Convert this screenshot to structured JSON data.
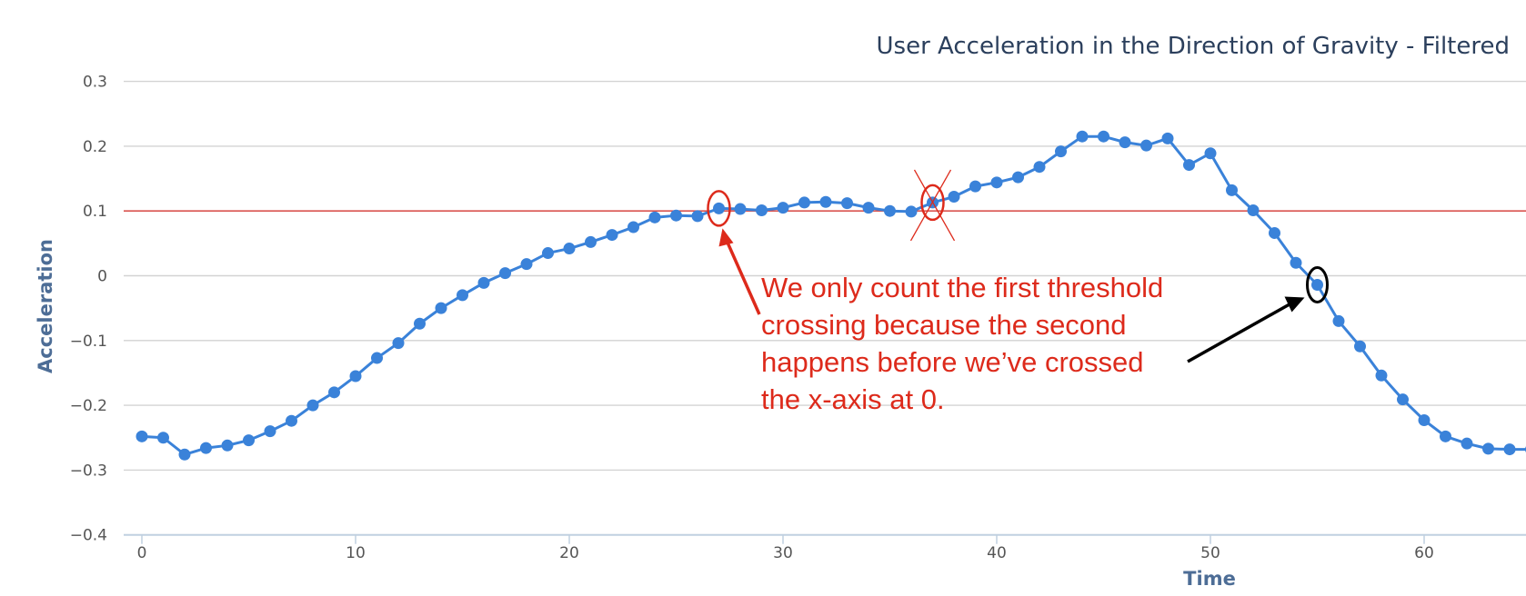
{
  "chart_data": {
    "type": "line",
    "title": "User Acceleration in the Direction of Gravity - Filtered",
    "xlabel": "Time",
    "ylabel": "Acceleration",
    "xlim": [
      -0.5,
      65
    ],
    "ylim": [
      -0.4,
      0.3
    ],
    "x_ticks": [
      0,
      10,
      20,
      30,
      40,
      50,
      60
    ],
    "y_ticks": [
      0.3,
      0.2,
      0.1,
      0,
      -0.1,
      -0.2,
      -0.3,
      -0.4
    ],
    "x_tick_labels": [
      "0",
      "10",
      "20",
      "30",
      "40",
      "50",
      "60"
    ],
    "y_tick_labels": [
      "0.3",
      "0.2",
      "0.1",
      "0",
      "−0.1",
      "−0.2",
      "−0.3",
      "−0.4"
    ],
    "grid": true,
    "series": [
      {
        "color": "#3a82d9",
        "x": [
          0,
          1,
          2,
          3,
          4,
          5,
          6,
          7,
          8,
          9,
          10,
          11,
          12,
          13,
          14,
          15,
          16,
          17,
          18,
          19,
          20,
          21,
          22,
          23,
          24,
          25,
          26,
          27,
          28,
          29,
          30,
          31,
          32,
          33,
          34,
          35,
          36,
          37,
          38,
          39,
          40,
          41,
          42,
          43,
          44,
          45,
          46,
          47,
          48,
          49,
          50,
          51,
          52,
          53,
          54,
          55,
          56,
          57,
          58,
          59,
          60,
          61,
          62,
          63,
          64,
          65
        ],
        "y": [
          -0.248,
          -0.25,
          -0.276,
          -0.266,
          -0.262,
          -0.254,
          -0.24,
          -0.224,
          -0.2,
          -0.18,
          -0.155,
          -0.127,
          -0.104,
          -0.074,
          -0.05,
          -0.03,
          -0.011,
          0.004,
          0.018,
          0.035,
          0.042,
          0.052,
          0.063,
          0.075,
          0.09,
          0.093,
          0.092,
          0.104,
          0.103,
          0.101,
          0.105,
          0.113,
          0.114,
          0.112,
          0.105,
          0.1,
          0.099,
          0.113,
          0.122,
          0.138,
          0.144,
          0.152,
          0.168,
          0.192,
          0.215,
          0.215,
          0.206,
          0.201,
          0.212,
          0.171,
          0.189,
          0.132,
          0.101,
          0.066,
          0.02,
          -0.014,
          -0.07,
          -0.109,
          -0.154,
          -0.191,
          -0.223,
          -0.248,
          -0.259,
          -0.267,
          -0.268,
          -0.268
        ]
      }
    ],
    "threshold": {
      "y": 0.1,
      "color": "#d9534f"
    },
    "annotations": {
      "text_lines": [
        "We only count the first threshold",
        "crossing because the second",
        "happens before we’ve crossed",
        "the x-axis at 0."
      ],
      "text_color": "#dd2a1b",
      "first_crossing": {
        "x": 27,
        "y": 0.104,
        "color": "#dd2a1b"
      },
      "rejected_crossing": {
        "x": 37,
        "y": 0.113,
        "color": "#dd2a1b"
      },
      "zero_crossing": {
        "x": 55,
        "y": -0.014,
        "color": "#000000"
      }
    }
  }
}
